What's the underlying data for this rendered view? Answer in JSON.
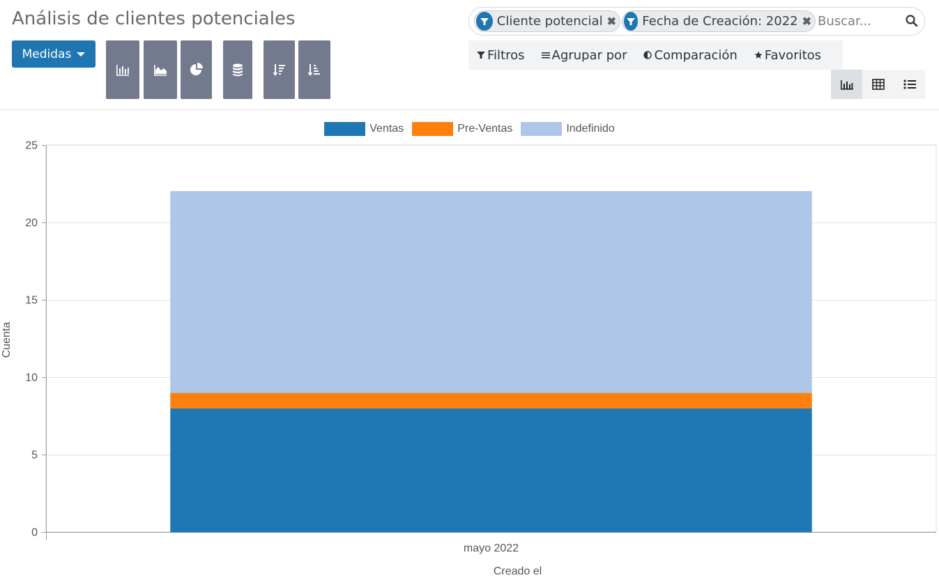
{
  "header": {
    "title": "Análisis de clientes potenciales",
    "measures_label": "Medidas"
  },
  "toolbar": {
    "buttons": [
      "bar-chart",
      "line-chart",
      "pie-chart",
      "stacked",
      "sort-descending",
      "sort-ascending"
    ]
  },
  "search": {
    "facets": [
      {
        "label": "Cliente potencial"
      },
      {
        "label": "Fecha de Creación: 2022"
      }
    ],
    "placeholder": "Buscar..."
  },
  "filters": {
    "filters_label": "Filtros",
    "group_by_label": "Agrupar por",
    "comparison_label": "Comparación",
    "favorites_label": "Favoritos"
  },
  "views": {
    "active": "graph",
    "items": [
      "graph",
      "pivot",
      "list"
    ]
  },
  "colors": {
    "primary": "#1f76b0",
    "tool_button": "#747a8d"
  },
  "chart_data": {
    "type": "bar",
    "stacked": true,
    "categories": [
      "mayo 2022"
    ],
    "series": [
      {
        "name": "Ventas",
        "values": [
          8
        ],
        "color": "#1f77b4"
      },
      {
        "name": "Pre-Ventas",
        "values": [
          1
        ],
        "color": "#ff7f0e"
      },
      {
        "name": "Indefinido",
        "values": [
          13
        ],
        "color": "#aec7e8"
      }
    ],
    "xlabel": "Creado el",
    "ylabel": "Cuenta",
    "ylim": [
      0,
      25
    ],
    "yticks": [
      0,
      5,
      10,
      15,
      20,
      25
    ],
    "grid": true,
    "legend_position": "top"
  }
}
